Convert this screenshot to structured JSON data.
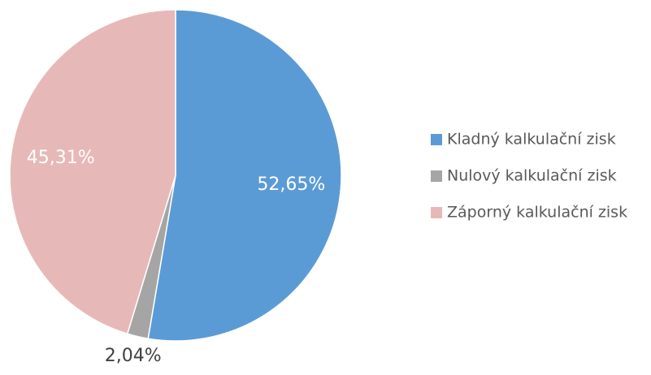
{
  "chart_data": {
    "type": "pie",
    "categories": [
      "Kladný kalkulační zisk",
      "Nulový kalkulační zisk",
      "Záporný kalkulační zisk"
    ],
    "values": [
      52.65,
      2.04,
      45.31
    ],
    "value_labels": [
      "52,65%",
      "2,04%",
      "45,31%"
    ],
    "colors": [
      "#5b9bd5",
      "#a5a5a5",
      "#e6b9b8"
    ],
    "legend": "right"
  }
}
